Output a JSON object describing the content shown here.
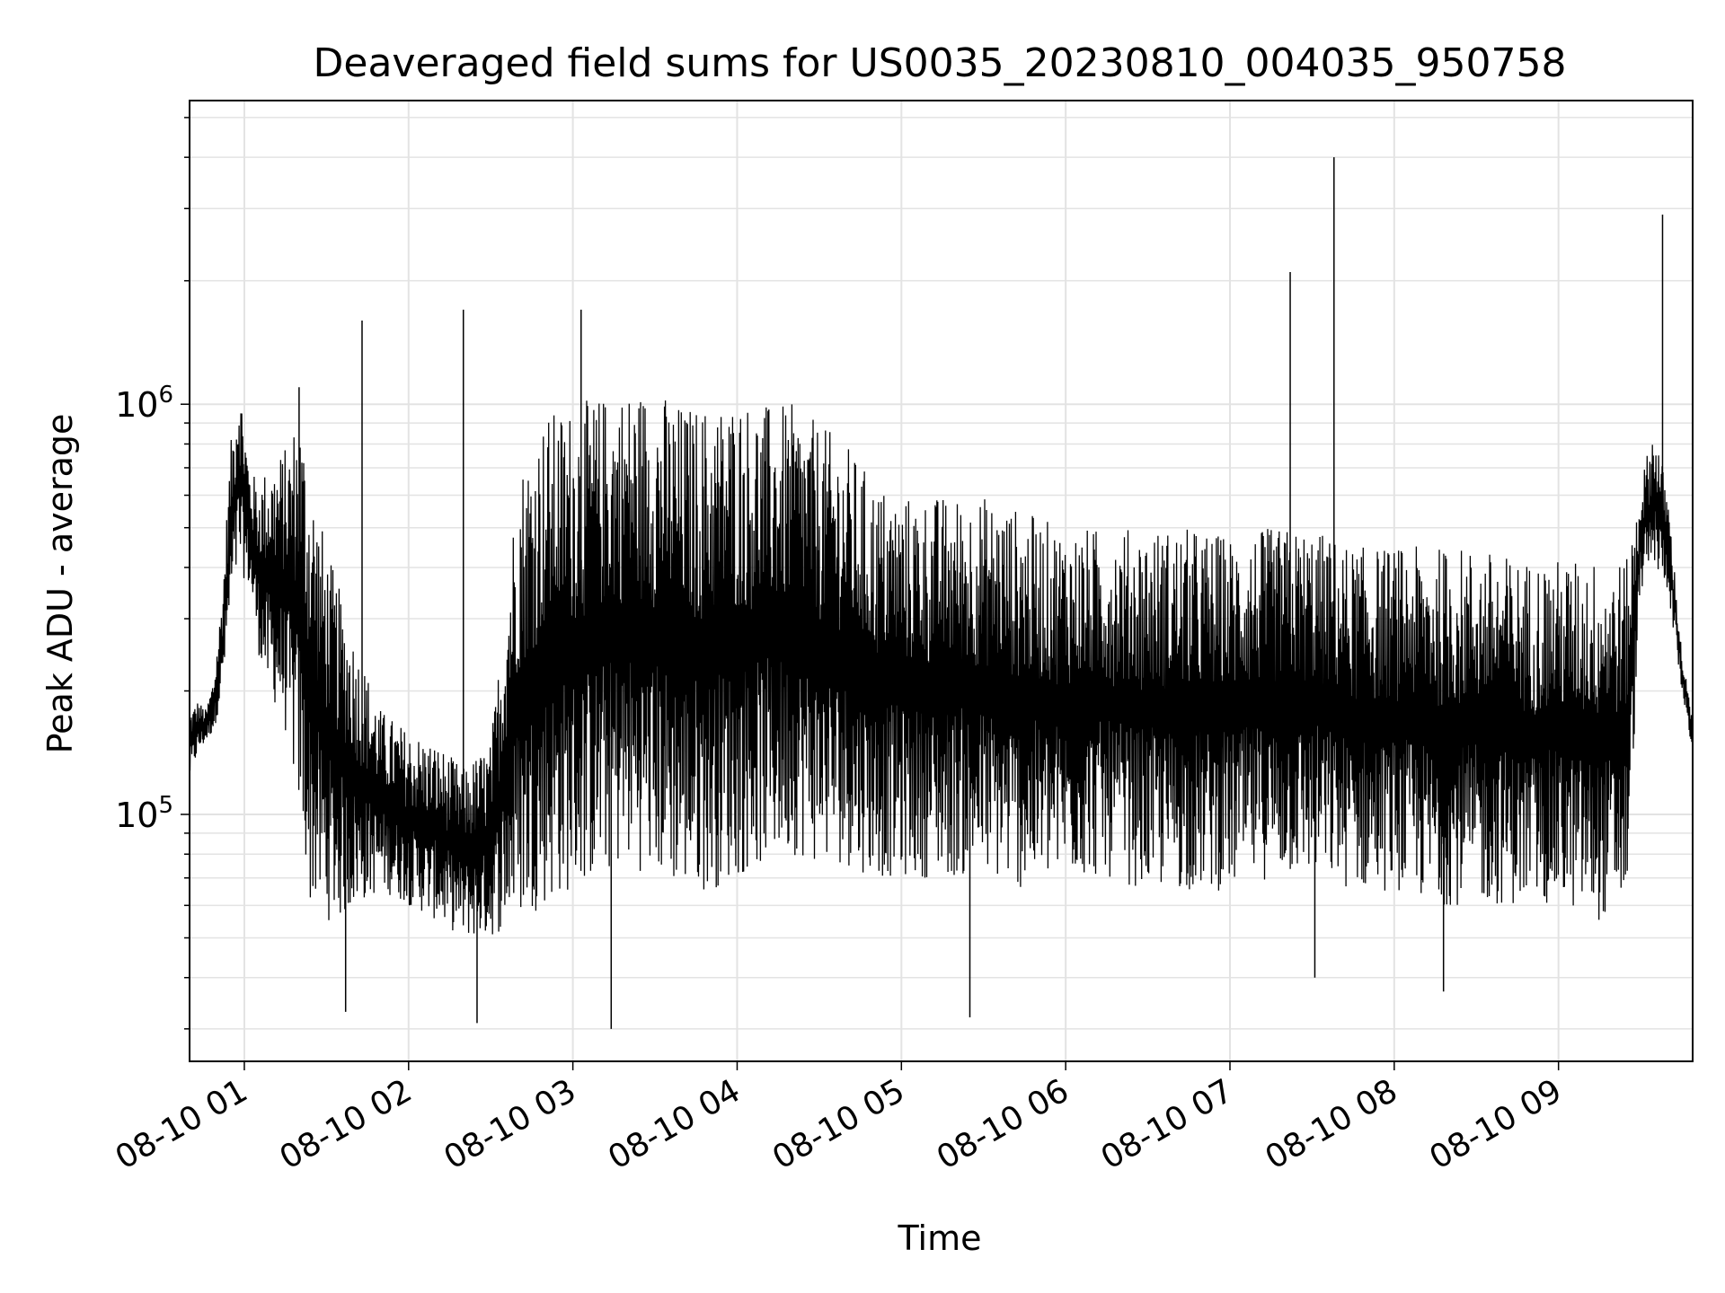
{
  "chart_data": {
    "type": "line",
    "title": "Deaveraged field sums for US0035_20230810_004035_950758",
    "xlabel": "Time",
    "ylabel": "Peak ADU - average",
    "x_scale": "time",
    "y_scale": "log",
    "xlim": [
      "2023-08-10 00:40",
      "2023-08-10 09:49"
    ],
    "ylim": [
      25000,
      5500000
    ],
    "grid": true,
    "x_tick_labels": [
      "08-10 01",
      "08-10 02",
      "08-10 03",
      "08-10 04",
      "08-10 05",
      "08-10 06",
      "08-10 07",
      "08-10 08",
      "08-10 09"
    ],
    "x_tick_times": [
      "2023-08-10 01:00",
      "2023-08-10 02:00",
      "2023-08-10 03:00",
      "2023-08-10 04:00",
      "2023-08-10 05:00",
      "2023-08-10 06:00",
      "2023-08-10 07:00",
      "2023-08-10 08:00",
      "2023-08-10 09:00"
    ],
    "y_major_ticks": [
      {
        "value": 100000,
        "base": "10",
        "exp": "5"
      },
      {
        "value": 1000000,
        "base": "10",
        "exp": "6"
      }
    ],
    "line_color": "#000000",
    "series": [
      {
        "x": [
          "2023-08-10 00:40",
          "2023-08-10 00:43",
          "2023-08-10 00:46",
          "2023-08-10 00:49",
          "2023-08-10 00:52",
          "2023-08-10 00:55",
          "2023-08-10 00:58",
          "2023-08-10 01:02",
          "2023-08-10 01:05",
          "2023-08-10 01:08",
          "2023-08-10 01:12",
          "2023-08-10 01:16",
          "2023-08-10 01:20",
          "2023-08-10 01:24",
          "2023-08-10 01:30",
          "2023-08-10 01:35",
          "2023-08-10 01:42",
          "2023-08-10 01:50",
          "2023-08-10 02:00",
          "2023-08-10 02:10",
          "2023-08-10 02:20",
          "2023-08-10 02:30",
          "2023-08-10 02:40",
          "2023-08-10 02:50",
          "2023-08-10 03:00",
          "2023-08-10 03:10",
          "2023-08-10 03:20",
          "2023-08-10 03:30",
          "2023-08-10 03:40",
          "2023-08-10 03:50",
          "2023-08-10 04:00",
          "2023-08-10 04:10",
          "2023-08-10 04:20",
          "2023-08-10 04:30",
          "2023-08-10 04:40",
          "2023-08-10 04:50",
          "2023-08-10 05:00",
          "2023-08-10 05:15",
          "2023-08-10 05:30",
          "2023-08-10 05:45",
          "2023-08-10 06:00",
          "2023-08-10 06:15",
          "2023-08-10 06:30",
          "2023-08-10 06:45",
          "2023-08-10 07:00",
          "2023-08-10 07:15",
          "2023-08-10 07:30",
          "2023-08-10 07:45",
          "2023-08-10 08:00",
          "2023-08-10 08:15",
          "2023-08-10 08:30",
          "2023-08-10 08:45",
          "2023-08-10 09:00",
          "2023-08-10 09:15",
          "2023-08-10 09:25",
          "2023-08-10 09:30",
          "2023-08-10 09:35",
          "2023-08-10 09:40",
          "2023-08-10 09:45",
          "2023-08-10 09:49"
        ],
        "lower": [
          120000,
          140000,
          150000,
          160000,
          200000,
          300000,
          400000,
          350000,
          250000,
          200000,
          180000,
          150000,
          100000,
          60000,
          55000,
          55000,
          60000,
          65000,
          60000,
          55000,
          50000,
          50000,
          55000,
          60000,
          65000,
          70000,
          75000,
          70000,
          65000,
          65000,
          70000,
          75000,
          80000,
          75000,
          75000,
          70000,
          70000,
          70000,
          70000,
          65000,
          70000,
          70000,
          65000,
          65000,
          65000,
          70000,
          70000,
          65000,
          65000,
          60000,
          60000,
          60000,
          60000,
          55000,
          60000,
          350000,
          400000,
          350000,
          200000,
          140000
        ],
        "upper": [
          180000,
          190000,
          180000,
          220000,
          350000,
          800000,
          1200000,
          700000,
          650000,
          700000,
          750000,
          800000,
          1000000,
          700000,
          450000,
          350000,
          250000,
          180000,
          160000,
          150000,
          130000,
          150000,
          700000,
          950000,
          1000000,
          1050000,
          1100000,
          1100000,
          1000000,
          1000000,
          1050000,
          1000000,
          1000000,
          900000,
          800000,
          650000,
          600000,
          600000,
          600000,
          550000,
          500000,
          500000,
          500000,
          500000,
          480000,
          500000,
          500000,
          450000,
          450000,
          450000,
          450000,
          420000,
          420000,
          420000,
          420000,
          650000,
          900000,
          600000,
          250000,
          170000
        ],
        "spikes": [
          {
            "t": "2023-08-10 01:20",
            "v": 1100000
          },
          {
            "t": "2023-08-10 01:43",
            "v": 1600000
          },
          {
            "t": "2023-08-10 02:20",
            "v": 1700000
          },
          {
            "t": "2023-08-10 03:03",
            "v": 1700000
          },
          {
            "t": "2023-08-10 07:22",
            "v": 2100000
          },
          {
            "t": "2023-08-10 07:38",
            "v": 4000000
          },
          {
            "t": "2023-08-10 09:38",
            "v": 2900000
          },
          {
            "t": "2023-08-10 01:37",
            "v": 33000
          },
          {
            "t": "2023-08-10 02:25",
            "v": 31000
          },
          {
            "t": "2023-08-10 03:14",
            "v": 30000
          },
          {
            "t": "2023-08-10 05:25",
            "v": 32000
          },
          {
            "t": "2023-08-10 07:31",
            "v": 40000
          },
          {
            "t": "2023-08-10 08:18",
            "v": 37000
          }
        ]
      }
    ]
  }
}
